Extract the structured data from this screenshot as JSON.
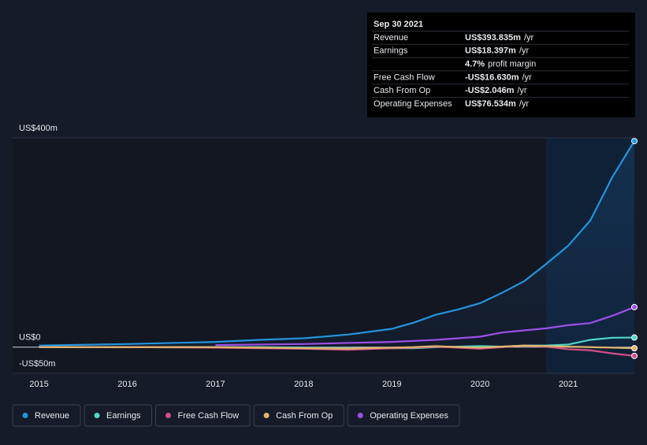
{
  "chart_data": {
    "type": "line",
    "x": [
      2015,
      2016,
      2017,
      2017.5,
      2018,
      2018.5,
      2019,
      2019.25,
      2019.5,
      2019.75,
      2020,
      2020.25,
      2020.5,
      2020.75,
      2021,
      2021.25,
      2021.5,
      2021.75
    ],
    "series": [
      {
        "name": "Revenue",
        "color": "#2394df",
        "values": [
          3,
          6,
          10,
          14,
          17,
          24,
          35,
          47,
          62,
          72,
          84,
          104,
          126,
          159,
          194,
          242,
          325,
          393.835
        ]
      },
      {
        "name": "Earnings",
        "color": "#4fd8c7",
        "values": [
          0,
          0,
          0,
          0,
          -1,
          -2,
          -2,
          -2,
          0,
          1,
          2,
          1,
          3,
          3,
          5,
          14,
          18,
          18.397
        ]
      },
      {
        "name": "Free Cash Flow",
        "color": "#d44e86",
        "values": [
          0,
          0,
          -1,
          -2,
          -3,
          -5,
          -2,
          -1,
          1,
          -1,
          -3,
          0,
          3,
          1,
          -4,
          -6,
          -12,
          -16.63
        ]
      },
      {
        "name": "Cash From Op",
        "color": "#e3b26a",
        "values": [
          0,
          0,
          0,
          -1,
          -2,
          -3,
          -1,
          0,
          2,
          0,
          -1,
          1,
          3,
          2,
          1,
          0,
          -1,
          -2.046
        ]
      },
      {
        "name": "Operating Expenses",
        "color": "#9d4fe8",
        "values": [
          null,
          null,
          4,
          5,
          6,
          8,
          10,
          12,
          14,
          17,
          20,
          28,
          32,
          36,
          42,
          46,
          60,
          76.534
        ]
      }
    ],
    "xlim": [
      2014.7,
      2021.75
    ],
    "xticks": [
      2015,
      2016,
      2017,
      2018,
      2019,
      2020,
      2021
    ],
    "ylim": [
      -50,
      400
    ],
    "yticks": [
      {
        "value": 400,
        "label": "US$400m"
      },
      {
        "value": 0,
        "label": "US$0"
      },
      {
        "value": -50,
        "label": "-US$50m"
      }
    ],
    "tooltip": {
      "date": "Sep 30 2021",
      "rows": [
        {
          "label": "Revenue",
          "value": "US$393.835m",
          "unit": "/yr"
        },
        {
          "label": "Earnings",
          "value": "US$18.397m",
          "unit": "/yr"
        },
        {
          "label": "4.7%",
          "value": "profit margin"
        },
        {
          "label": "Free Cash Flow",
          "value": "-US$16.630m",
          "unit": "/yr"
        },
        {
          "label": "Cash From Op",
          "value": "-US$2.046m",
          "unit": "/yr"
        },
        {
          "label": "Operating Expenses",
          "value": "US$76.534m",
          "unit": "/yr"
        }
      ]
    }
  }
}
